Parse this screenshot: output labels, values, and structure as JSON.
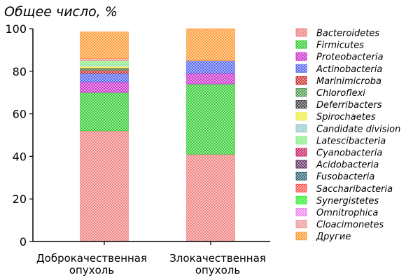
{
  "chart_data": {
    "type": "bar",
    "stacked": true,
    "title": "Общее число, %",
    "ylim": [
      0,
      100
    ],
    "yticks": [
      0,
      20,
      40,
      60,
      80,
      100
    ],
    "grid": false,
    "legend_position": "right",
    "categories": [
      [
        "Доброкачественная",
        "опухоль"
      ],
      [
        "Злокачественная",
        "опухоль"
      ]
    ],
    "series": [
      {
        "name": "Bacteroidetes",
        "color": "#f08080",
        "values": [
          52,
          41
        ]
      },
      {
        "name": "Firmicutes",
        "color": "#33cc33",
        "values": [
          18,
          33
        ]
      },
      {
        "name": "Proteobacteria",
        "color": "#cc33cc",
        "values": [
          5,
          5
        ]
      },
      {
        "name": "Actinobacteria",
        "color": "#5566ee",
        "values": [
          4,
          6
        ]
      },
      {
        "name": "Marinimicroba",
        "color": "#cc3333",
        "values": [
          1.5,
          0
        ]
      },
      {
        "name": "Chloroflexi",
        "color": "#559955",
        "values": [
          0.5,
          0
        ]
      },
      {
        "name": "Deferribacters",
        "color": "#444444",
        "values": [
          0.5,
          0
        ]
      },
      {
        "name": "Spirochaetes",
        "color": "#eeee44",
        "values": [
          1,
          0
        ]
      },
      {
        "name": "Candidate division",
        "color": "#99cccc",
        "values": [
          0.5,
          0
        ]
      },
      {
        "name": "Latescibacteria",
        "color": "#88ee88",
        "values": [
          2,
          0
        ]
      },
      {
        "name": "Cyanobacteria",
        "color": "#cc2266",
        "values": [
          0,
          0
        ]
      },
      {
        "name": "Acidobacteria",
        "color": "#663366",
        "values": [
          0,
          0
        ]
      },
      {
        "name": "Fusobacteria",
        "color": "#336677",
        "values": [
          0,
          0
        ]
      },
      {
        "name": "Saccharibacteria",
        "color": "#ff5555",
        "values": [
          0,
          0
        ]
      },
      {
        "name": "Synergistetes",
        "color": "#33ee33",
        "values": [
          0,
          0
        ]
      },
      {
        "name": "Omnitrophica",
        "color": "#ee88ee",
        "values": [
          0,
          0
        ]
      },
      {
        "name": "Cloacimonetes",
        "color": "#ee9999",
        "values": [
          1,
          0
        ]
      },
      {
        "name": "Другие",
        "color": "#ff9933",
        "values": [
          12.5,
          15
        ]
      }
    ]
  }
}
